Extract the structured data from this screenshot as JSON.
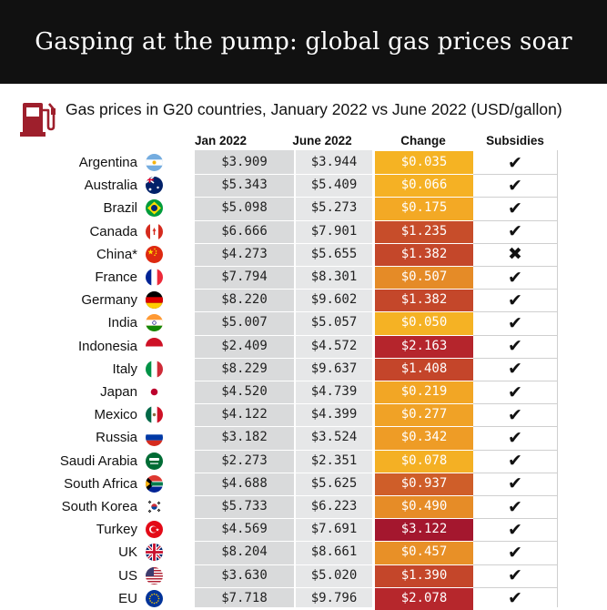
{
  "header": {
    "title": "Gasping at the pump: global gas prices soar"
  },
  "subtitle": "Gas prices in G20 countries, January 2022 vs June 2022 (USD/gallon)",
  "icons": {
    "fuel": "fuel-pump-icon",
    "subsidy_yes": "check-icon",
    "subsidy_no": "cross-icon"
  },
  "colors": {
    "banner": "#111111",
    "pump": "#9e1f2c",
    "jan_col": "#d9dadb",
    "jun_col": "#e6e7e8",
    "change_low": "#f6b623",
    "change_high": "#a3162e"
  },
  "chart_data": {
    "type": "table",
    "title": "Gas prices in G20 countries, January 2022 vs June 2022 (USD/gallon)",
    "columns": [
      "Jan 2022",
      "June 2022",
      "Change",
      "Subsidies"
    ],
    "rows": [
      {
        "country": "Argentina",
        "jan": "$3.909",
        "jun": "$3.944",
        "change": "$0.035",
        "subsidy": true,
        "change_value": 0.035
      },
      {
        "country": "Australia",
        "jan": "$5.343",
        "jun": "$5.409",
        "change": "$0.066",
        "subsidy": true,
        "change_value": 0.066
      },
      {
        "country": "Brazil",
        "jan": "$5.098",
        "jun": "$5.273",
        "change": "$0.175",
        "subsidy": true,
        "change_value": 0.175
      },
      {
        "country": "Canada",
        "jan": "$6.666",
        "jun": "$7.901",
        "change": "$1.235",
        "subsidy": true,
        "change_value": 1.235
      },
      {
        "country": "China*",
        "jan": "$4.273",
        "jun": "$5.655",
        "change": "$1.382",
        "subsidy": false,
        "change_value": 1.382
      },
      {
        "country": "France",
        "jan": "$7.794",
        "jun": "$8.301",
        "change": "$0.507",
        "subsidy": true,
        "change_value": 0.507
      },
      {
        "country": "Germany",
        "jan": "$8.220",
        "jun": "$9.602",
        "change": "$1.382",
        "subsidy": true,
        "change_value": 1.382
      },
      {
        "country": "India",
        "jan": "$5.007",
        "jun": "$5.057",
        "change": "$0.050",
        "subsidy": true,
        "change_value": 0.05
      },
      {
        "country": "Indonesia",
        "jan": "$2.409",
        "jun": "$4.572",
        "change": "$2.163",
        "subsidy": true,
        "change_value": 2.163
      },
      {
        "country": "Italy",
        "jan": "$8.229",
        "jun": "$9.637",
        "change": "$1.408",
        "subsidy": true,
        "change_value": 1.408
      },
      {
        "country": "Japan",
        "jan": "$4.520",
        "jun": "$4.739",
        "change": "$0.219",
        "subsidy": true,
        "change_value": 0.219
      },
      {
        "country": "Mexico",
        "jan": "$4.122",
        "jun": "$4.399",
        "change": "$0.277",
        "subsidy": true,
        "change_value": 0.277
      },
      {
        "country": "Russia",
        "jan": "$3.182",
        "jun": "$3.524",
        "change": "$0.342",
        "subsidy": true,
        "change_value": 0.342
      },
      {
        "country": "Saudi Arabia",
        "jan": "$2.273",
        "jun": "$2.351",
        "change": "$0.078",
        "subsidy": true,
        "change_value": 0.078
      },
      {
        "country": "South Africa",
        "jan": "$4.688",
        "jun": "$5.625",
        "change": "$0.937",
        "subsidy": true,
        "change_value": 0.937
      },
      {
        "country": "South Korea",
        "jan": "$5.733",
        "jun": "$6.223",
        "change": "$0.490",
        "subsidy": true,
        "change_value": 0.49
      },
      {
        "country": "Turkey",
        "jan": "$4.569",
        "jun": "$7.691",
        "change": "$3.122",
        "subsidy": true,
        "change_value": 3.122
      },
      {
        "country": "UK",
        "jan": "$8.204",
        "jun": "$8.661",
        "change": "$0.457",
        "subsidy": true,
        "change_value": 0.457
      },
      {
        "country": "US",
        "jan": "$3.630",
        "jun": "$5.020",
        "change": "$1.390",
        "subsidy": true,
        "change_value": 1.39
      },
      {
        "country": "EU",
        "jan": "$7.718",
        "jun": "$9.796",
        "change": "$2.078",
        "subsidy": true,
        "change_value": 2.078
      }
    ]
  }
}
